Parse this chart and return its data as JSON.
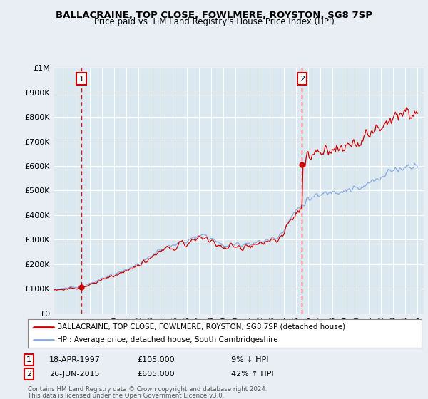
{
  "title": "BALLACRAINE, TOP CLOSE, FOWLMERE, ROYSTON, SG8 7SP",
  "subtitle": "Price paid vs. HM Land Registry's House Price Index (HPI)",
  "ylim": [
    0,
    1000000
  ],
  "yticks": [
    0,
    100000,
    200000,
    300000,
    400000,
    500000,
    600000,
    700000,
    800000,
    900000,
    1000000
  ],
  "ytick_labels": [
    "£0",
    "£100K",
    "£200K",
    "£300K",
    "£400K",
    "£500K",
    "£600K",
    "£700K",
    "£800K",
    "£900K",
    "£1M"
  ],
  "xlim_start": 1995.0,
  "xlim_end": 2025.5,
  "transaction1": {
    "year": 1997.29,
    "price": 105000,
    "label": "1",
    "date": "18-APR-1997",
    "amount": "£105,000",
    "hpi_diff": "9% ↓ HPI"
  },
  "transaction2": {
    "year": 2015.48,
    "price": 605000,
    "label": "2",
    "date": "26-JUN-2015",
    "amount": "£605,000",
    "hpi_diff": "42% ↑ HPI"
  },
  "red_line_color": "#cc0000",
  "blue_line_color": "#88aadd",
  "background_color": "#e8eef4",
  "plot_bg_color": "#dce8f0",
  "grid_color": "#ffffff",
  "legend_label_red": "BALLACRAINE, TOP CLOSE, FOWLMERE, ROYSTON, SG8 7SP (detached house)",
  "legend_label_blue": "HPI: Average price, detached house, South Cambridgeshire",
  "footer1": "Contains HM Land Registry data © Crown copyright and database right 2024.",
  "footer2": "This data is licensed under the Open Government Licence v3.0."
}
